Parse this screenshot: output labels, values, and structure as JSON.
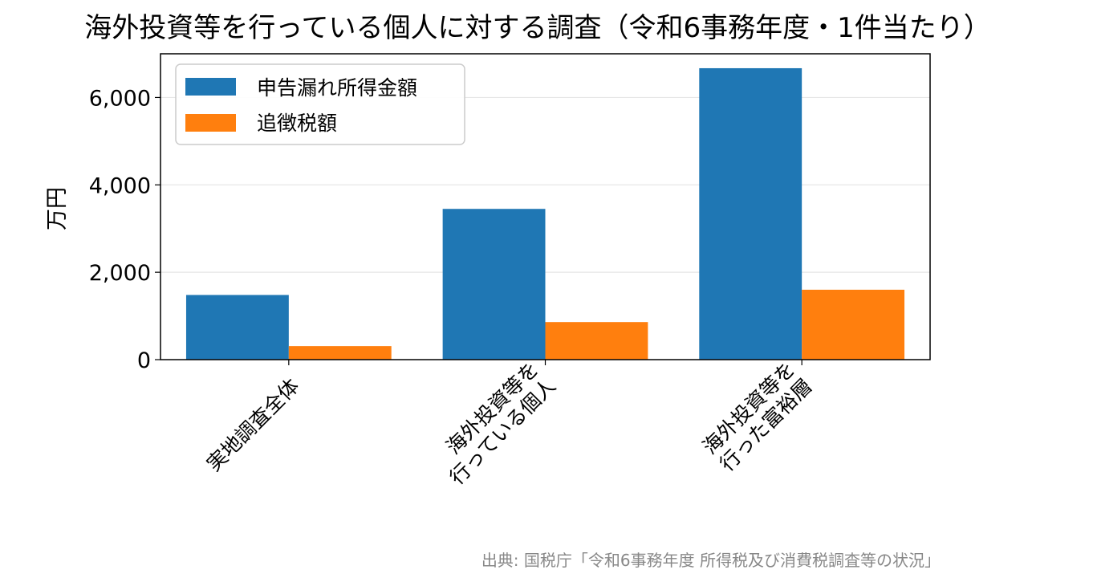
{
  "chart_data": {
    "type": "bar",
    "title": "海外投資等を行っている個人に対する調査（令和6事務年度・1件当たり）",
    "xlabel": "",
    "ylabel": "万円",
    "ylim": [
      0,
      7000
    ],
    "yticks": [
      0,
      2000,
      4000,
      6000
    ],
    "ytick_labels": [
      "0",
      "2,000",
      "4,000",
      "6,000"
    ],
    "grid": "horizontal",
    "legend_position": "upper-left",
    "categories": [
      [
        "実地調査全体"
      ],
      [
        "海外投資等を",
        "行っている個人"
      ],
      [
        "海外投資等を",
        "行った富裕層"
      ]
    ],
    "series": [
      {
        "name": "申告漏れ所得金額",
        "color": "#1f77b4",
        "values": [
          1480,
          3450,
          6670
        ]
      },
      {
        "name": "追徴税額",
        "color": "#ff7f0e",
        "values": [
          310,
          860,
          1600
        ]
      }
    ],
    "source": "出典: 国税庁「令和6事務年度 所得税及び消費税調査等の状況」"
  }
}
